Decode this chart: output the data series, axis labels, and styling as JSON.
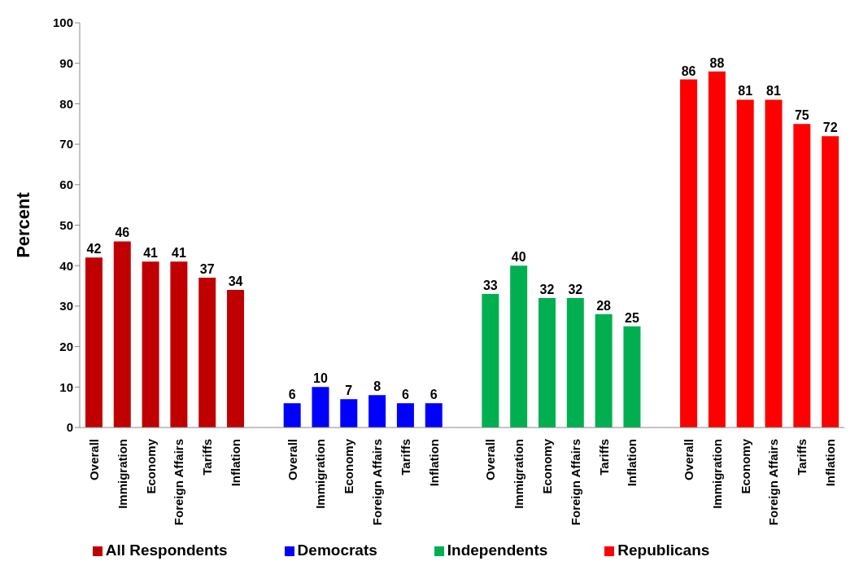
{
  "chart_data": {
    "type": "bar",
    "ylabel": "Percent",
    "categories": [
      "Overall",
      "Immigration",
      "Economy",
      "Foreign Affairs",
      "Tariffs",
      "Inflation",
      null,
      "Overall",
      "Immigration",
      "Economy",
      "Foreign Affairs",
      "Tariffs",
      "Inflation",
      null,
      "Overall",
      "Immigration",
      "Economy",
      "Foreign Affairs",
      "Tariffs",
      "Inflation",
      null,
      "Overall",
      "Immigration",
      "Economy",
      "Foreign Affairs",
      "Tariffs",
      "Inflation"
    ],
    "series": [
      {
        "name": "All Respondents",
        "color": "#c00000",
        "values": [
          42,
          46,
          41,
          41,
          37,
          34,
          null,
          null,
          null,
          null,
          null,
          null,
          null,
          null,
          null,
          null,
          null,
          null,
          null,
          null,
          null,
          null,
          null,
          null,
          null,
          null,
          null
        ]
      },
      {
        "name": "Democrats",
        "color": "#0000ff",
        "values": [
          null,
          null,
          null,
          null,
          null,
          null,
          null,
          6,
          10,
          7,
          8,
          6,
          6,
          null,
          null,
          null,
          null,
          null,
          null,
          null,
          null,
          null,
          null,
          null,
          null,
          null,
          null
        ]
      },
      {
        "name": "Independents",
        "color": "#00b050",
        "values": [
          null,
          null,
          null,
          null,
          null,
          null,
          null,
          null,
          null,
          null,
          null,
          null,
          null,
          null,
          33,
          40,
          32,
          32,
          28,
          25,
          null,
          null,
          null,
          null,
          null,
          null,
          null
        ]
      },
      {
        "name": "Republicans",
        "color": "#ff0000",
        "values": [
          null,
          null,
          null,
          null,
          null,
          null,
          null,
          null,
          null,
          null,
          null,
          null,
          null,
          null,
          null,
          null,
          null,
          null,
          null,
          null,
          null,
          86,
          88,
          81,
          81,
          75,
          72
        ]
      }
    ],
    "ylim": [
      0,
      100
    ],
    "yticks": [
      0,
      10,
      20,
      30,
      40,
      50,
      60,
      70,
      80,
      90,
      100
    ],
    "data_labels": true,
    "grid": false,
    "legend": "bottom"
  }
}
